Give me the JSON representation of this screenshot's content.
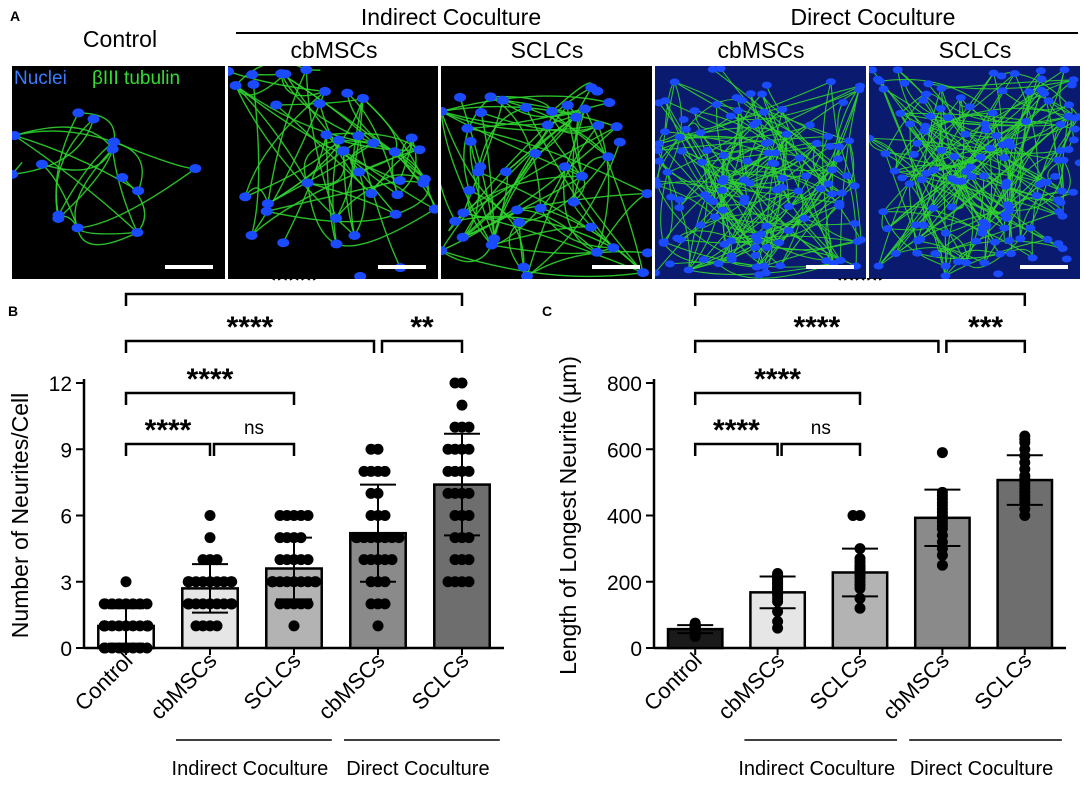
{
  "panel_a": {
    "letter": "A",
    "control_label": "Control",
    "indirect_label": "Indirect Coculture",
    "direct_label": "Direct Coculture",
    "sub_labels": [
      "cbMSCs",
      "SCLCs",
      "cbMSCs",
      "SCLCs"
    ],
    "stain_nuclei": "Nuclei",
    "stain_tubulin": "βIII tubulin",
    "colors": {
      "nuclei": "#1a4bff",
      "tubulin": "#2fd12f",
      "background": "#000000"
    }
  },
  "chart_data": [
    {
      "panel": "B",
      "type": "bar",
      "ylabel": "Number of Neurites/Cell",
      "ylim": [
        0,
        12
      ],
      "yticks": [
        0,
        3,
        6,
        9,
        12
      ],
      "categories": [
        "Control",
        "cbMSCs",
        "SCLCs",
        "cbMSCs",
        "SCLCs"
      ],
      "group_labels": [
        "Indirect Coculture",
        "Direct Coculture"
      ],
      "values": [
        1.0,
        2.7,
        3.6,
        5.2,
        7.4
      ],
      "sd": [
        0.8,
        1.1,
        1.4,
        2.2,
        2.3
      ],
      "bar_colors": [
        "#ffffff",
        "#e6e6e6",
        "#b3b3b3",
        "#8a8a8a",
        "#6e6e6e"
      ],
      "points": [
        [
          0,
          0,
          0,
          0,
          0,
          0,
          0,
          0,
          1,
          1,
          1,
          1,
          1,
          1,
          1,
          1,
          1,
          1,
          1,
          1,
          1,
          1,
          1,
          1,
          2,
          2,
          2,
          2,
          2,
          2,
          2,
          2,
          3
        ],
        [
          1,
          1,
          1,
          1,
          2,
          2,
          2,
          2,
          2,
          2,
          2,
          2,
          2,
          2,
          2,
          3,
          3,
          3,
          3,
          3,
          3,
          3,
          3,
          3,
          3,
          4,
          4,
          4,
          5,
          6
        ],
        [
          1,
          2,
          2,
          2,
          2,
          2,
          3,
          3,
          3,
          3,
          3,
          3,
          3,
          3,
          3,
          3,
          4,
          4,
          4,
          4,
          4,
          5,
          5,
          5,
          5,
          6,
          6,
          6,
          6,
          6
        ],
        [
          1,
          2,
          2,
          2,
          3,
          3,
          3,
          4,
          4,
          4,
          4,
          4,
          5,
          5,
          5,
          5,
          5,
          5,
          5,
          5,
          6,
          6,
          6,
          7,
          7,
          8,
          8,
          8,
          8,
          9,
          9
        ],
        [
          3,
          3,
          3,
          3,
          4,
          4,
          4,
          5,
          5,
          5,
          6,
          6,
          6,
          7,
          7,
          7,
          7,
          8,
          8,
          8,
          8,
          9,
          9,
          9,
          9,
          10,
          10,
          10,
          11,
          12,
          12
        ]
      ],
      "comparisons": [
        {
          "from": 0,
          "to": 4,
          "label": "****"
        },
        {
          "from": 0,
          "to": 3,
          "label": "****"
        },
        {
          "from": 3,
          "to": 4,
          "label": "**"
        },
        {
          "from": 0,
          "to": 2,
          "label": "****"
        },
        {
          "from": 0,
          "to": 1,
          "label": "****"
        },
        {
          "from": 1,
          "to": 2,
          "label": "ns"
        }
      ]
    },
    {
      "panel": "C",
      "type": "bar",
      "ylabel": "Length of Longest Neurite (µm)",
      "ylim": [
        0,
        800
      ],
      "yticks": [
        0,
        200,
        400,
        600,
        800
      ],
      "categories": [
        "Control",
        "cbMSCs",
        "SCLCs",
        "cbMSCs",
        "SCLCs"
      ],
      "group_labels": [
        "Indirect Coculture",
        "Direct Coculture"
      ],
      "values": [
        57,
        168,
        228,
        393,
        507
      ],
      "sd": [
        12,
        48,
        72,
        85,
        75
      ],
      "bar_colors": [
        "#1a1a1a",
        "#e6e6e6",
        "#b3b3b3",
        "#8a8a8a",
        "#6e6e6e"
      ],
      "points": [
        [
          35,
          40,
          42,
          45,
          48,
          50,
          52,
          53,
          55,
          57,
          58,
          60,
          62,
          63,
          65,
          67,
          68,
          70,
          72,
          75
        ],
        [
          60,
          80,
          110,
          140,
          150,
          160,
          165,
          170,
          175,
          180,
          185,
          190,
          195,
          200,
          205,
          210,
          215,
          220,
          225
        ],
        [
          120,
          150,
          180,
          190,
          200,
          210,
          215,
          220,
          225,
          230,
          235,
          240,
          245,
          250,
          260,
          270,
          300,
          400,
          400
        ],
        [
          250,
          280,
          300,
          320,
          340,
          360,
          370,
          380,
          390,
          400,
          410,
          420,
          430,
          440,
          450,
          460,
          470,
          590
        ],
        [
          400,
          420,
          440,
          450,
          460,
          470,
          480,
          490,
          500,
          510,
          520,
          540,
          560,
          580,
          600,
          620,
          630,
          640
        ]
      ],
      "comparisons": [
        {
          "from": 0,
          "to": 4,
          "label": "****"
        },
        {
          "from": 0,
          "to": 3,
          "label": "****"
        },
        {
          "from": 3,
          "to": 4,
          "label": "***"
        },
        {
          "from": 0,
          "to": 2,
          "label": "****"
        },
        {
          "from": 0,
          "to": 1,
          "label": "****"
        },
        {
          "from": 1,
          "to": 2,
          "label": "ns"
        }
      ]
    }
  ]
}
